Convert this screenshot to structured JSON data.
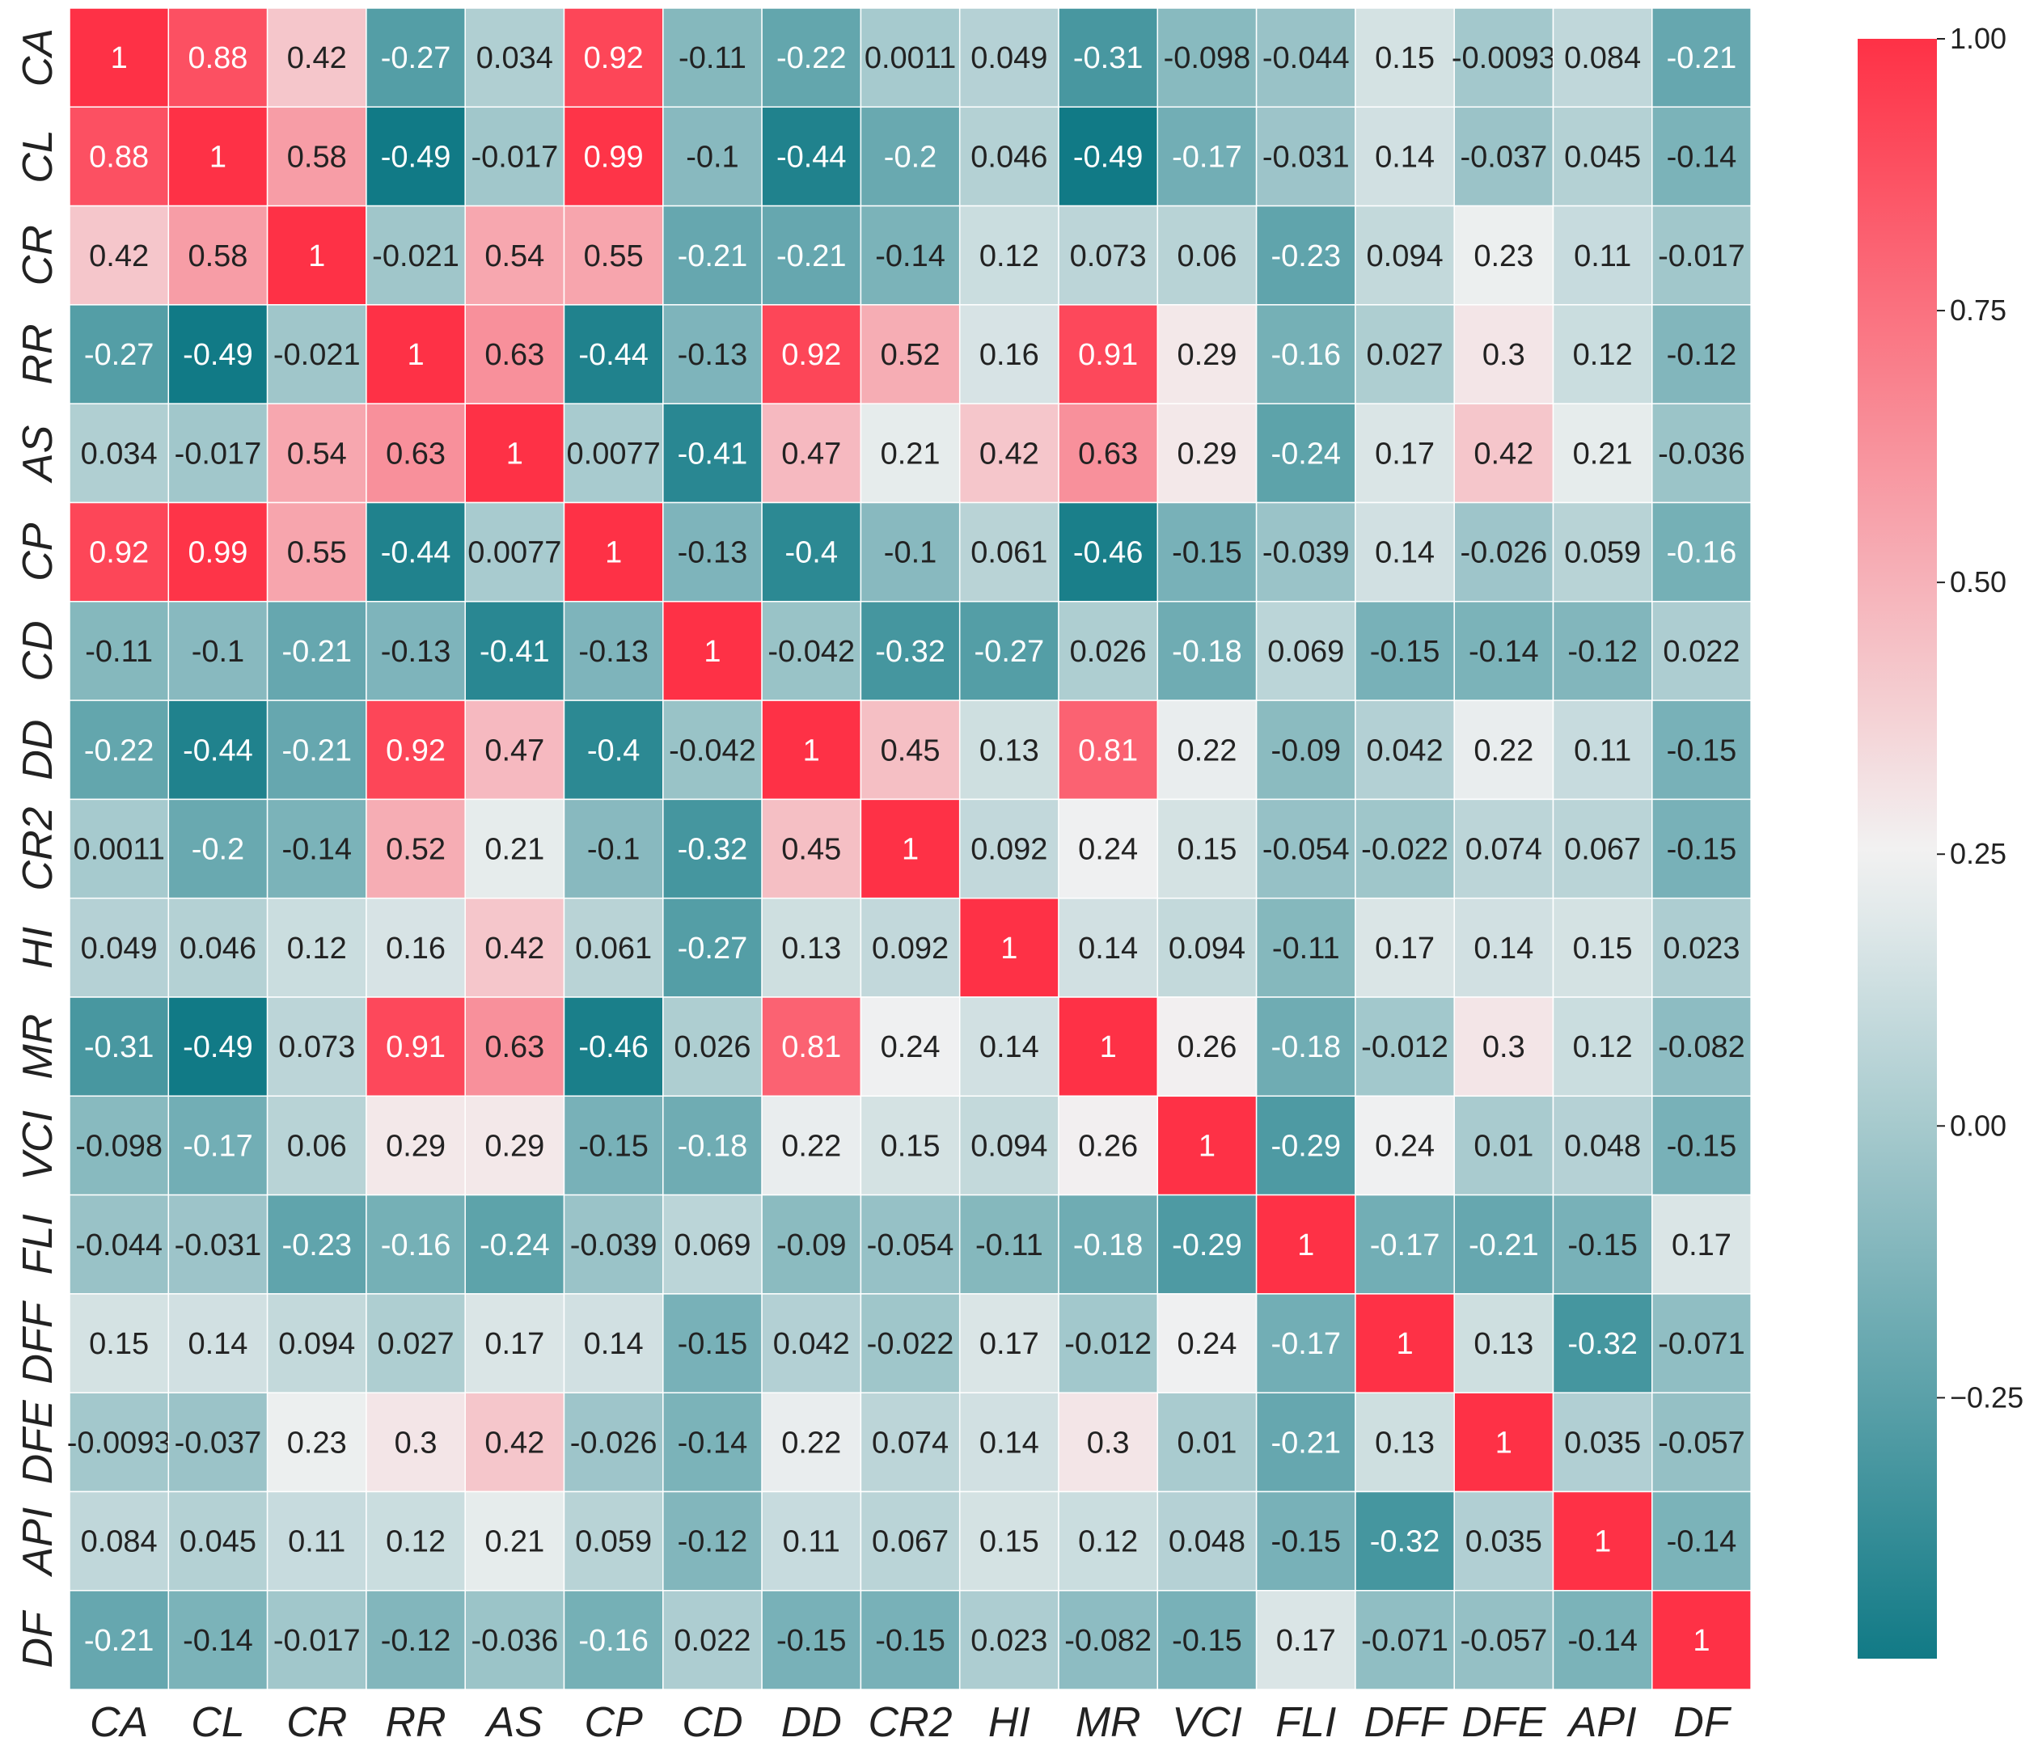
{
  "chart_data": {
    "type": "heatmap",
    "title": "",
    "xlabel": "",
    "ylabel": "",
    "variables": [
      "CA",
      "CL",
      "CR",
      "RR",
      "AS",
      "CP",
      "CD",
      "DD",
      "CR2",
      "HI",
      "MR",
      "VCI",
      "FLI",
      "DFF",
      "DFE",
      "API",
      "DF"
    ],
    "matrix": [
      [
        1,
        0.88,
        0.42,
        -0.27,
        0.034,
        0.92,
        -0.11,
        -0.22,
        0.0011,
        0.049,
        -0.31,
        -0.098,
        -0.044,
        0.15,
        -0.0093,
        0.084,
        -0.21
      ],
      [
        0.88,
        1,
        0.58,
        -0.49,
        -0.017,
        0.99,
        -0.1,
        -0.44,
        -0.2,
        0.046,
        -0.49,
        -0.17,
        -0.031,
        0.14,
        -0.037,
        0.045,
        -0.14
      ],
      [
        0.42,
        0.58,
        1,
        -0.021,
        0.54,
        0.55,
        -0.21,
        -0.21,
        -0.14,
        0.12,
        0.073,
        0.06,
        -0.23,
        0.094,
        0.23,
        0.11,
        -0.017
      ],
      [
        -0.27,
        -0.49,
        -0.021,
        1,
        0.63,
        -0.44,
        -0.13,
        0.92,
        0.52,
        0.16,
        0.91,
        0.29,
        -0.16,
        0.027,
        0.3,
        0.12,
        -0.12
      ],
      [
        0.034,
        -0.017,
        0.54,
        0.63,
        1,
        0.0077,
        -0.41,
        0.47,
        0.21,
        0.42,
        0.63,
        0.29,
        -0.24,
        0.17,
        0.42,
        0.21,
        -0.036
      ],
      [
        0.92,
        0.99,
        0.55,
        -0.44,
        0.0077,
        1,
        -0.13,
        -0.4,
        -0.1,
        0.061,
        -0.46,
        -0.15,
        -0.039,
        0.14,
        -0.026,
        0.059,
        -0.16
      ],
      [
        -0.11,
        -0.1,
        -0.21,
        -0.13,
        -0.41,
        -0.13,
        1,
        -0.042,
        -0.32,
        -0.27,
        0.026,
        -0.18,
        0.069,
        -0.15,
        -0.14,
        -0.12,
        0.022
      ],
      [
        -0.22,
        -0.44,
        -0.21,
        0.92,
        0.47,
        -0.4,
        -0.042,
        1,
        0.45,
        0.13,
        0.81,
        0.22,
        -0.09,
        0.042,
        0.22,
        0.11,
        -0.15
      ],
      [
        0.0011,
        -0.2,
        -0.14,
        0.52,
        0.21,
        -0.1,
        -0.32,
        0.45,
        1,
        0.092,
        0.24,
        0.15,
        -0.054,
        -0.022,
        0.074,
        0.067,
        -0.15
      ],
      [
        0.049,
        0.046,
        0.12,
        0.16,
        0.42,
        0.061,
        -0.27,
        0.13,
        0.092,
        1,
        0.14,
        0.094,
        -0.11,
        0.17,
        0.14,
        0.15,
        0.023
      ],
      [
        -0.31,
        -0.49,
        0.073,
        0.91,
        0.63,
        -0.46,
        0.026,
        0.81,
        0.24,
        0.14,
        1,
        0.26,
        -0.18,
        -0.012,
        0.3,
        0.12,
        -0.082
      ],
      [
        -0.098,
        -0.17,
        0.06,
        0.29,
        0.29,
        -0.15,
        -0.18,
        0.22,
        0.15,
        0.094,
        0.26,
        1,
        -0.29,
        0.24,
        0.01,
        0.048,
        -0.15
      ],
      [
        -0.044,
        -0.031,
        -0.23,
        -0.16,
        -0.24,
        -0.039,
        0.069,
        -0.09,
        -0.054,
        -0.11,
        -0.18,
        -0.29,
        1,
        -0.17,
        -0.21,
        -0.15,
        0.17
      ],
      [
        0.15,
        0.14,
        0.094,
        0.027,
        0.17,
        0.14,
        -0.15,
        0.042,
        -0.022,
        0.17,
        -0.012,
        0.24,
        -0.17,
        1,
        0.13,
        -0.32,
        -0.071
      ],
      [
        -0.0093,
        -0.037,
        0.23,
        0.3,
        0.42,
        -0.026,
        -0.14,
        0.22,
        0.074,
        0.14,
        0.3,
        0.01,
        -0.21,
        0.13,
        1,
        0.035,
        -0.057
      ],
      [
        0.084,
        0.045,
        0.11,
        0.12,
        0.21,
        0.059,
        -0.12,
        0.11,
        0.067,
        0.15,
        0.12,
        0.048,
        -0.15,
        -0.32,
        0.035,
        1,
        -0.14
      ],
      [
        -0.21,
        -0.14,
        -0.017,
        -0.12,
        -0.036,
        -0.16,
        0.022,
        -0.15,
        -0.15,
        0.023,
        -0.082,
        -0.15,
        0.17,
        -0.071,
        -0.057,
        -0.14,
        1
      ]
    ],
    "colorbar": {
      "vmin": -0.49,
      "vmax": 1.0,
      "center": 0.25,
      "ticks": [
        1.0,
        0.75,
        0.5,
        0.25,
        0.0,
        -0.25
      ],
      "tick_labels": [
        "1.00",
        "0.75",
        "0.50",
        "0.25",
        "0.00",
        "−0.25"
      ]
    },
    "colors": {
      "low": "#117a86",
      "mid": "#f2f2f2",
      "high": "#fe3146",
      "grid": "#ffffff",
      "text_dark": "#222222",
      "text_light": "#ffffff"
    },
    "grid": true,
    "legend": "right"
  }
}
